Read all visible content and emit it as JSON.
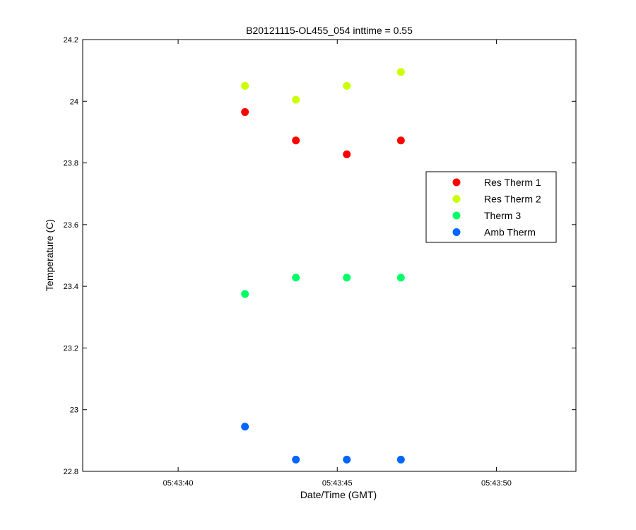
{
  "chart_data": {
    "type": "scatter",
    "title": "B20121115-OL455_054 inttime = 0.55",
    "xlabel": "Date/Time (GMT)",
    "ylabel": "Temperature (C)",
    "x_unit": "time of day (GMT)",
    "xlim": [
      "05:43:37",
      "05:43:52.5"
    ],
    "ylim": [
      22.8,
      24.2
    ],
    "xticks": [
      "05:43:40",
      "05:43:45",
      "05:43:50"
    ],
    "yticks": [
      "22.8",
      "23",
      "23.2",
      "23.4",
      "23.6",
      "23.8",
      "24",
      "24.2"
    ],
    "grid": false,
    "legend_position": "right",
    "x": [
      "05:43:42.1",
      "05:43:43.7",
      "05:43:45.3",
      "05:43:47.0"
    ],
    "series": [
      {
        "name": "Res Therm 1",
        "color": "#ff0000",
        "values": [
          23.965,
          23.873,
          23.828,
          23.873
        ]
      },
      {
        "name": "Res Therm 2",
        "color": "#ccff00",
        "values": [
          24.05,
          24.005,
          24.05,
          24.095
        ]
      },
      {
        "name": "Therm 3",
        "color": "#00ff66",
        "values": [
          23.375,
          23.428,
          23.428,
          23.428
        ]
      },
      {
        "name": "Amb Therm",
        "color": "#0066ff",
        "values": [
          22.945,
          22.838,
          22.838,
          22.838
        ]
      }
    ]
  }
}
